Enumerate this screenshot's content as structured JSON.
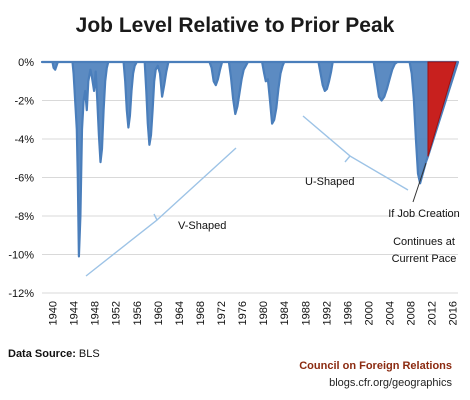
{
  "chart_data": {
    "type": "area",
    "title": "Job Level Relative to Prior Peak",
    "xlim": [
      1938,
      2017
    ],
    "ylim": [
      -12,
      0
    ],
    "yticks": [
      0,
      -2,
      -4,
      -6,
      -8,
      -10,
      -12
    ],
    "ytick_labels": [
      "0%",
      "-2%",
      "-4%",
      "-6%",
      "-8%",
      "-10%",
      "-12%"
    ],
    "xticks": [
      1940,
      1944,
      1948,
      1952,
      1956,
      1960,
      1964,
      1968,
      1972,
      1976,
      1980,
      1984,
      1988,
      1992,
      1996,
      2000,
      2004,
      2008,
      2012,
      2016
    ],
    "grid": true,
    "colors": {
      "series": "#4a7ebb",
      "projection": "#c8201e",
      "annotation": "#9dc3e6"
    },
    "series": [
      {
        "x": [
          1938,
          1940.0,
          1940.2,
          1940.5,
          1941,
          1943.8,
          1944.0,
          1944.2,
          1944.4,
          1944.6,
          1944.8,
          1945.0,
          1945.3,
          1945.6,
          1945.9,
          1946.2,
          1946.5,
          1946.8,
          1947.2,
          1947.5,
          1947.9,
          1948.2,
          1948.5,
          1948.8,
          1949.1,
          1949.4,
          1949.7,
          1950.0,
          1950.3,
          1950.6,
          1951,
          1953.5,
          1953.8,
          1954.1,
          1954.4,
          1954.7,
          1955.0,
          1955.3,
          1955.6,
          1956,
          1957.5,
          1957.8,
          1958.1,
          1958.4,
          1958.7,
          1959.0,
          1959.3,
          1959.6,
          1960.0,
          1960.4,
          1960.8,
          1961.2,
          1961.6,
          1962.0,
          1969.8,
          1970.2,
          1970.6,
          1971.0,
          1971.4,
          1971.8,
          1972.2,
          1973.5,
          1973.9,
          1974.3,
          1974.7,
          1975.1,
          1975.5,
          1975.9,
          1976.3,
          1976.7,
          1977.1,
          1977.5,
          1979.8,
          1980.2,
          1980.5,
          1980.9,
          1981.3,
          1981.7,
          1982.1,
          1982.5,
          1982.9,
          1983.3,
          1983.7,
          1984.0,
          1990.5,
          1990.9,
          1991.3,
          1991.7,
          1992.1,
          1992.5,
          1992.9,
          1993.2,
          2001.0,
          2001.5,
          2002.0,
          2002.5,
          2003.0,
          2003.5,
          2004.0,
          2004.5,
          2005.0,
          2005.5,
          2007.8,
          2008.2,
          2008.6,
          2009.0,
          2009.4,
          2009.8,
          2010.1,
          2010.5,
          2010.9,
          2011.3,
          2017
        ],
        "values": [
          0,
          0,
          -0.3,
          -0.4,
          0,
          0,
          -0.6,
          -1.5,
          -2.5,
          -3.5,
          -6.0,
          -10.1,
          -8.0,
          -3.5,
          -2.0,
          -1.5,
          -2.5,
          -1.0,
          -0.4,
          -0.8,
          -1.5,
          -0.5,
          -2.0,
          -3.8,
          -5.2,
          -4.5,
          -2.5,
          -1.0,
          -0.3,
          0,
          0,
          0,
          -1.0,
          -2.5,
          -3.4,
          -2.8,
          -1.5,
          -0.6,
          -0.2,
          0,
          0,
          -1.5,
          -3.2,
          -4.3,
          -3.8,
          -2.5,
          -1.0,
          -0.4,
          -0.2,
          -0.6,
          -1.8,
          -1.2,
          -0.5,
          0,
          0,
          -0.3,
          -1.0,
          -1.2,
          -0.9,
          -0.4,
          0,
          0,
          -0.8,
          -1.9,
          -2.7,
          -2.3,
          -1.6,
          -0.9,
          -0.4,
          -0.2,
          0,
          0,
          0,
          -0.6,
          -1.0,
          -0.9,
          -2.0,
          -3.2,
          -3.0,
          -2.4,
          -1.4,
          -0.6,
          -0.2,
          0,
          0,
          -0.6,
          -1.2,
          -1.5,
          -1.4,
          -1.0,
          -0.5,
          0,
          0,
          -0.9,
          -1.8,
          -2.0,
          -1.8,
          -1.4,
          -0.9,
          -0.4,
          -0.1,
          0,
          0,
          -0.6,
          -1.9,
          -4.0,
          -5.8,
          -6.3,
          -6.0,
          -5.6,
          -5.2,
          -4.9,
          0
        ]
      }
    ],
    "projection": {
      "label": "If Job Creation Continues at Current Pace",
      "x": [
        2011.3,
        2016.6
      ],
      "y": [
        -4.9,
        0
      ]
    },
    "annotations": [
      {
        "label": "V-Shaped"
      },
      {
        "label": "U-Shaped"
      },
      {
        "label": "If Job Creation"
      },
      {
        "label": "Continues at"
      },
      {
        "label": "Current Pace"
      }
    ]
  },
  "footer": {
    "source_label": "Data Source:",
    "source_value": "BLS",
    "org": "Council on Foreign Relations",
    "url": "blogs.cfr.org/geographics"
  }
}
